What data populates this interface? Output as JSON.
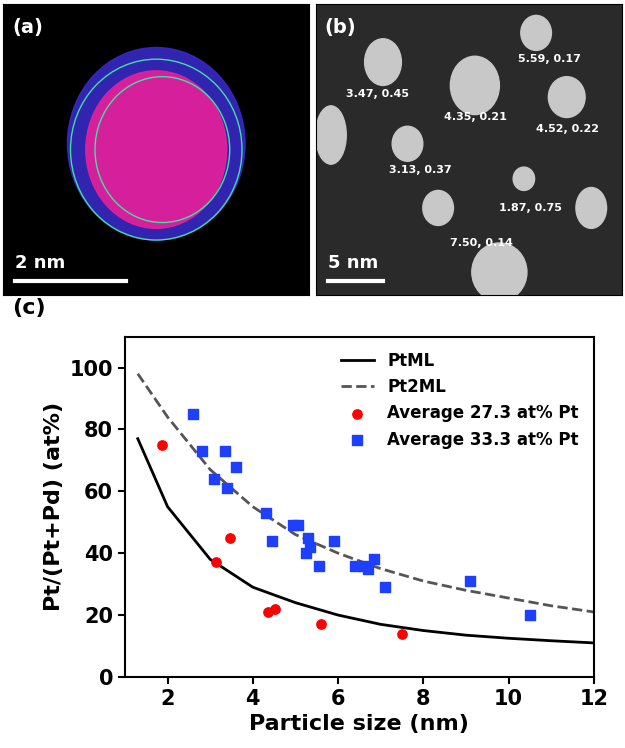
{
  "panel_a": {
    "label": "(a)",
    "scale_bar": "2 nm"
  },
  "panel_b": {
    "label": "(b)",
    "scale_bar": "5 nm",
    "particle_labels": [
      "3.47, 0.45",
      "5.59, 0.17",
      "4.35, 0.21",
      "4.52, 0.22",
      "3.13, 0.37",
      "1.87, 0.75",
      "7.50, 0.14"
    ]
  },
  "chart_data": {
    "panel_label": "(c)",
    "type": "scatter",
    "xlabel": "Particle size (nm)",
    "ylabel": "Pt/(Pt+Pd) (at%)",
    "xlim": [
      1,
      12
    ],
    "xticks": [
      2,
      4,
      6,
      8,
      10,
      12
    ],
    "ylim": [
      0,
      110
    ],
    "yticks": [
      0,
      20,
      40,
      60,
      80,
      100
    ],
    "legend": "upper right",
    "series": [
      {
        "name": "PtML",
        "type": "line",
        "color": "#000000",
        "line_style": "solid",
        "x": [
          1.3,
          2,
          3,
          4,
          5,
          6,
          7,
          8,
          9,
          10,
          11,
          12
        ],
        "values": [
          77,
          55,
          38,
          29,
          24,
          20,
          17,
          15,
          13.5,
          12.5,
          11.7,
          11
        ]
      },
      {
        "name": "Pt2ML",
        "type": "line",
        "color": "#555555",
        "line_style": "dashed",
        "x": [
          1.3,
          2,
          3,
          4,
          5,
          6,
          7,
          8,
          9,
          10,
          11,
          12
        ],
        "values": [
          98,
          84,
          67,
          55,
          46,
          40,
          35,
          31,
          28,
          25.5,
          23,
          21
        ]
      },
      {
        "name": "Average 27.3 at% Pt",
        "type": "scatter",
        "color": "#ff0000",
        "marker": "circle",
        "x": [
          1.87,
          3.13,
          3.47,
          4.35,
          4.52,
          5.59,
          7.5
        ],
        "values": [
          75,
          37,
          45,
          21,
          22,
          17,
          14
        ]
      },
      {
        "name": "Average 33.3 at% Pt",
        "type": "scatter",
        "color": "#1f3fff",
        "marker": "square",
        "x": [
          2.6,
          2.8,
          3.1,
          3.35,
          3.4,
          3.6,
          4.3,
          4.45,
          4.95,
          5.05,
          5.25,
          5.3,
          5.35,
          5.55,
          5.9,
          6.4,
          6.6,
          6.7,
          6.85,
          7.1,
          9.1,
          10.5
        ],
        "values": [
          85,
          73,
          64,
          73,
          61,
          68,
          53,
          44,
          49,
          49,
          40,
          45,
          42,
          36,
          44,
          36,
          36,
          35,
          38,
          29,
          31,
          20
        ]
      }
    ]
  }
}
